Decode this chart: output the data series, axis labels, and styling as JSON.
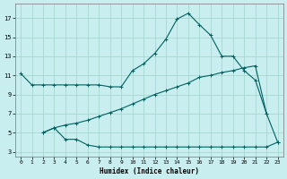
{
  "xlabel": "Humidex (Indice chaleur)",
  "background_color": "#c8eef0",
  "grid_color": "#a0d4cc",
  "line_color": "#006060",
  "xlim": [
    -0.5,
    23.5
  ],
  "ylim": [
    2.5,
    18.5
  ],
  "xticks": [
    0,
    1,
    2,
    3,
    4,
    5,
    6,
    7,
    8,
    9,
    10,
    11,
    12,
    13,
    14,
    15,
    16,
    17,
    18,
    19,
    20,
    21,
    22,
    23
  ],
  "yticks": [
    3,
    5,
    7,
    9,
    11,
    13,
    15,
    17
  ],
  "line1_x": [
    0,
    1,
    2,
    3,
    4,
    5,
    6,
    7,
    8,
    9,
    10,
    11,
    12,
    13,
    14,
    15,
    16,
    17,
    18,
    19,
    20,
    21,
    22
  ],
  "line1_y": [
    11.2,
    10.0,
    10.0,
    10.0,
    10.0,
    10.0,
    10.0,
    10.0,
    9.8,
    9.8,
    11.5,
    12.2,
    13.3,
    14.8,
    16.9,
    17.5,
    16.3,
    15.2,
    13.0,
    13.0,
    11.5,
    10.5,
    7.0
  ],
  "line2_x": [
    2,
    3,
    4,
    5,
    6,
    7,
    8,
    9,
    10,
    11,
    12,
    13,
    14,
    15,
    16,
    17,
    18,
    19,
    20,
    21,
    22,
    23
  ],
  "line2_y": [
    5.0,
    5.5,
    4.3,
    4.3,
    3.7,
    3.5,
    3.5,
    3.5,
    3.5,
    3.5,
    3.5,
    3.5,
    3.5,
    3.5,
    3.5,
    3.5,
    3.5,
    3.5,
    3.5,
    3.5,
    3.5,
    4.0
  ],
  "line3_x": [
    2,
    3,
    4,
    5,
    6,
    7,
    8,
    9,
    10,
    11,
    12,
    13,
    14,
    15,
    16,
    17,
    18,
    19,
    20,
    21,
    22,
    23
  ],
  "line3_y": [
    5.0,
    5.5,
    5.8,
    6.0,
    6.3,
    6.7,
    7.1,
    7.5,
    8.0,
    8.5,
    9.0,
    9.4,
    9.8,
    10.2,
    10.8,
    11.0,
    11.3,
    11.5,
    11.8,
    12.0,
    7.0,
    4.0
  ]
}
